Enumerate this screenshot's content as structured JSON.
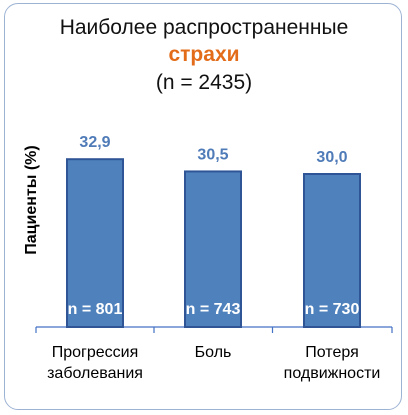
{
  "title": {
    "line1": "Наиболее распространенные",
    "line2": "страхи",
    "line3": "(n = 2435)"
  },
  "chart_data": {
    "type": "bar",
    "ylabel": "Пациенты (%)",
    "xlabel": "",
    "categories": [
      [
        "Прогрессия",
        "заболевания"
      ],
      [
        "Боль"
      ],
      [
        "Потеря",
        "подвижности"
      ]
    ],
    "values": [
      32.9,
      30.5,
      30.0
    ],
    "value_labels": [
      "32,9",
      "30,5",
      "30,0"
    ],
    "n_labels": [
      "n = 801",
      "n = 743",
      "n = 730"
    ],
    "ylim": [
      0,
      40
    ],
    "grid": false,
    "colors": {
      "bar": "#4F81BD",
      "bar_edge": "#2F5597",
      "value_text": "#4F7BB8",
      "title_accent": "#E36C1A"
    }
  }
}
